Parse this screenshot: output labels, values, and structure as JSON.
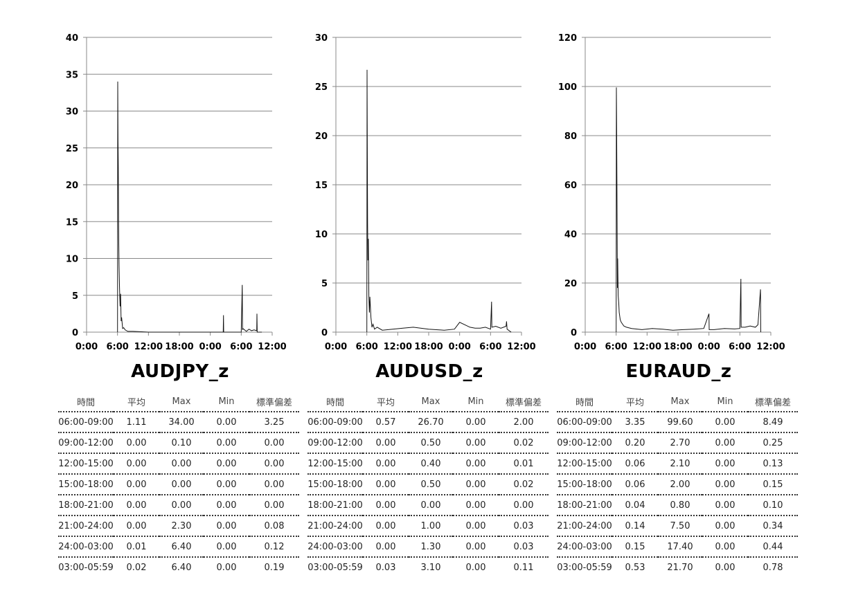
{
  "chart_data": [
    {
      "type": "line",
      "title": "AUDJPY_z",
      "ylim": [
        0,
        40
      ],
      "yticks": [
        "0",
        "5",
        "10",
        "15",
        "20",
        "25",
        "30",
        "35",
        "40"
      ],
      "xticks": [
        "0:00",
        "6:00",
        "12:00",
        "18:00",
        "0:00",
        "6:00",
        "12:00"
      ],
      "grid": true,
      "x_hours": [
        6.0,
        6.05,
        6.1,
        6.15,
        6.2,
        6.25,
        6.3,
        6.4,
        6.5,
        6.6,
        6.7,
        6.8,
        7.0,
        7.2,
        7.5,
        8.0,
        9.0,
        12.0,
        15.0,
        18.0,
        21.0,
        24.0,
        26.5,
        26.55,
        26.6,
        28.0,
        30.0,
        30.2,
        30.25,
        30.3,
        31.0,
        31.5,
        32.0,
        32.5,
        33.0,
        33.05,
        33.1,
        34.0
      ],
      "values": [
        0.0,
        34.0,
        26.0,
        22.5,
        15.0,
        12.0,
        9.0,
        6.0,
        3.5,
        5.2,
        1.5,
        2.0,
        0.5,
        0.6,
        0.3,
        0.1,
        0.1,
        0.0,
        0.0,
        0.0,
        0.0,
        0.0,
        0.0,
        2.3,
        0.0,
        0.0,
        0.0,
        6.4,
        0.3,
        0.5,
        0.1,
        0.4,
        0.2,
        0.3,
        0.2,
        2.5,
        0.0,
        0.0
      ]
    },
    {
      "type": "line",
      "title": "AUDUSD_z",
      "ylim": [
        0,
        30
      ],
      "yticks": [
        "0",
        "5",
        "10",
        "15",
        "20",
        "25",
        "30"
      ],
      "xticks": [
        "0:00",
        "6:00",
        "12:00",
        "18:00",
        "0:00",
        "6:00",
        "12:00"
      ],
      "grid": true,
      "x_hours": [
        6.0,
        6.05,
        6.1,
        6.15,
        6.2,
        6.3,
        6.4,
        6.5,
        6.6,
        6.8,
        7.0,
        7.2,
        7.5,
        8.0,
        9.0,
        11.0,
        13.0,
        15.0,
        18.0,
        21.0,
        23.0,
        24.0,
        26.0,
        27.0,
        28.0,
        29.0,
        30.0,
        30.2,
        30.25,
        31.0,
        32.0,
        33.0,
        33.1,
        33.2,
        34.0
      ],
      "values": [
        0.0,
        26.7,
        18.3,
        11.0,
        7.3,
        9.5,
        3.7,
        2.0,
        3.6,
        1.5,
        0.5,
        0.8,
        0.3,
        0.5,
        0.2,
        0.3,
        0.4,
        0.5,
        0.3,
        0.2,
        0.3,
        1.0,
        0.5,
        0.4,
        0.4,
        0.5,
        0.3,
        3.1,
        0.5,
        0.6,
        0.4,
        0.6,
        1.1,
        0.3,
        0.0
      ]
    },
    {
      "type": "line",
      "title": "EURAUD_z",
      "ylim": [
        0,
        120
      ],
      "yticks": [
        "0",
        "20",
        "40",
        "60",
        "80",
        "100",
        "120"
      ],
      "xticks": [
        "0:00",
        "6:00",
        "12:00",
        "18:00",
        "0:00",
        "6:00",
        "12:00"
      ],
      "grid": true,
      "x_hours": [
        6.0,
        6.05,
        6.1,
        6.15,
        6.2,
        6.25,
        6.3,
        6.4,
        6.5,
        6.6,
        6.8,
        7.0,
        7.5,
        8.0,
        9.0,
        11.0,
        13.0,
        15.0,
        17.0,
        19.0,
        21.0,
        23.0,
        24.0,
        24.05,
        25.0,
        27.0,
        29.0,
        30.0,
        30.2,
        30.25,
        31.0,
        32.0,
        33.0,
        33.5,
        34.0,
        34.05
      ],
      "values": [
        0.0,
        99.6,
        83.0,
        60.0,
        35.0,
        18.0,
        30.0,
        15.0,
        12.0,
        8.0,
        5.0,
        4.0,
        2.5,
        2.0,
        1.5,
        1.0,
        1.5,
        1.2,
        0.8,
        1.0,
        1.2,
        1.5,
        7.5,
        1.0,
        1.0,
        1.5,
        1.3,
        1.5,
        21.7,
        2.0,
        2.0,
        2.5,
        2.0,
        3.0,
        17.4,
        0.0
      ]
    }
  ],
  "tables": [
    {
      "headers": [
        "時間",
        "平均",
        "Max",
        "Min",
        "標準偏差"
      ],
      "rows": [
        [
          "06:00-09:00",
          "1.11",
          "34.00",
          "0.00",
          "3.25"
        ],
        [
          "09:00-12:00",
          "0.00",
          "0.10",
          "0.00",
          "0.00"
        ],
        [
          "12:00-15:00",
          "0.00",
          "0.00",
          "0.00",
          "0.00"
        ],
        [
          "15:00-18:00",
          "0.00",
          "0.00",
          "0.00",
          "0.00"
        ],
        [
          "18:00-21:00",
          "0.00",
          "0.00",
          "0.00",
          "0.00"
        ],
        [
          "21:00-24:00",
          "0.00",
          "2.30",
          "0.00",
          "0.08"
        ],
        [
          "24:00-03:00",
          "0.01",
          "6.40",
          "0.00",
          "0.12"
        ],
        [
          "03:00-05:59",
          "0.02",
          "6.40",
          "0.00",
          "0.19"
        ]
      ]
    },
    {
      "headers": [
        "時間",
        "平均",
        "Max",
        "Min",
        "標準偏差"
      ],
      "rows": [
        [
          "06:00-09:00",
          "0.57",
          "26.70",
          "0.00",
          "2.00"
        ],
        [
          "09:00-12:00",
          "0.00",
          "0.50",
          "0.00",
          "0.02"
        ],
        [
          "12:00-15:00",
          "0.00",
          "0.40",
          "0.00",
          "0.01"
        ],
        [
          "15:00-18:00",
          "0.00",
          "0.50",
          "0.00",
          "0.02"
        ],
        [
          "18:00-21:00",
          "0.00",
          "0.00",
          "0.00",
          "0.00"
        ],
        [
          "21:00-24:00",
          "0.00",
          "1.00",
          "0.00",
          "0.03"
        ],
        [
          "24:00-03:00",
          "0.00",
          "1.30",
          "0.00",
          "0.03"
        ],
        [
          "03:00-05:59",
          "0.03",
          "3.10",
          "0.00",
          "0.11"
        ]
      ]
    },
    {
      "headers": [
        "時間",
        "平均",
        "Max",
        "Min",
        "標準偏差"
      ],
      "rows": [
        [
          "06:00-09:00",
          "3.35",
          "99.60",
          "0.00",
          "8.49"
        ],
        [
          "09:00-12:00",
          "0.20",
          "2.70",
          "0.00",
          "0.25"
        ],
        [
          "12:00-15:00",
          "0.06",
          "2.10",
          "0.00",
          "0.13"
        ],
        [
          "15:00-18:00",
          "0.06",
          "2.00",
          "0.00",
          "0.15"
        ],
        [
          "18:00-21:00",
          "0.04",
          "0.80",
          "0.00",
          "0.10"
        ],
        [
          "21:00-24:00",
          "0.14",
          "7.50",
          "0.00",
          "0.34"
        ],
        [
          "24:00-03:00",
          "0.15",
          "17.40",
          "0.00",
          "0.44"
        ],
        [
          "03:00-05:59",
          "0.53",
          "21.70",
          "0.00",
          "0.78"
        ]
      ]
    }
  ]
}
